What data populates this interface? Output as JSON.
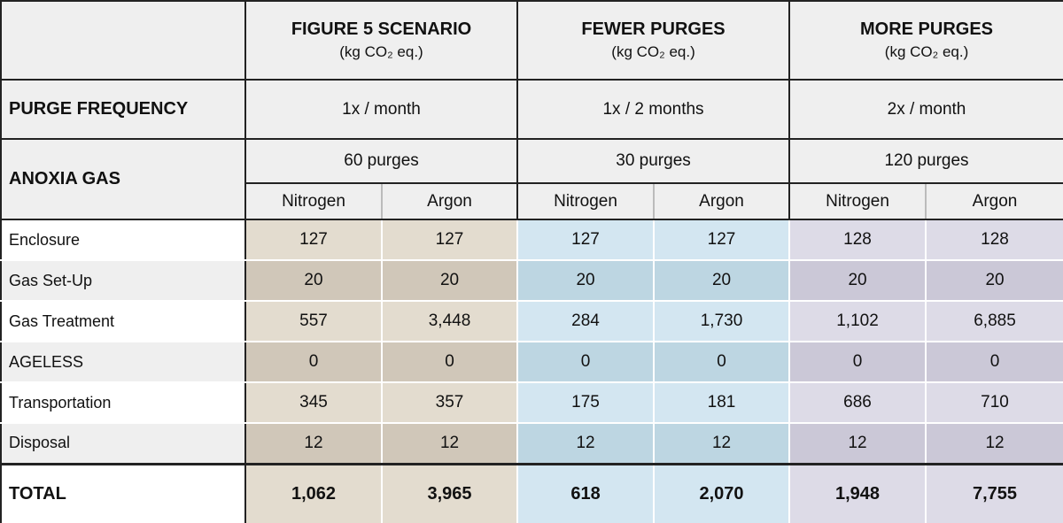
{
  "header": {
    "columns": [
      {
        "title": "FIGURE 5 SCENARIO",
        "unit": "(kg CO₂ eq.)"
      },
      {
        "title": "FEWER PURGES",
        "unit": "(kg CO₂ eq.)"
      },
      {
        "title": "MORE PURGES",
        "unit": "(kg CO₂ eq.)"
      }
    ]
  },
  "purge_frequency": {
    "label": "PURGE FREQUENCY",
    "values": [
      "1x / month",
      "1x / 2 months",
      "2x / month"
    ]
  },
  "anoxia_gas": {
    "label": "ANOXIA GAS",
    "purges": [
      "60 purges",
      "30 purges",
      "120 purges"
    ],
    "gases": [
      "Nitrogen",
      "Argon",
      "Nitrogen",
      "Argon",
      "Nitrogen",
      "Argon"
    ]
  },
  "table": {
    "rows": [
      {
        "label": "Enclosure",
        "values": [
          "127",
          "127",
          "127",
          "127",
          "128",
          "128"
        ]
      },
      {
        "label": "Gas Set-Up",
        "values": [
          "20",
          "20",
          "20",
          "20",
          "20",
          "20"
        ]
      },
      {
        "label": "Gas Treatment",
        "values": [
          "557",
          "3,448",
          "284",
          "1,730",
          "1,102",
          "6,885"
        ]
      },
      {
        "label": "AGELESS",
        "values": [
          "0",
          "0",
          "0",
          "0",
          "0",
          "0"
        ]
      },
      {
        "label": "Transportation",
        "values": [
          "345",
          "357",
          "175",
          "181",
          "686",
          "710"
        ]
      },
      {
        "label": "Disposal",
        "values": [
          "12",
          "12",
          "12",
          "12",
          "12",
          "12"
        ]
      }
    ]
  },
  "total": {
    "label": "TOTAL",
    "values": [
      "1,062",
      "3,965",
      "618",
      "2,070",
      "1,948",
      "7,755"
    ]
  }
}
